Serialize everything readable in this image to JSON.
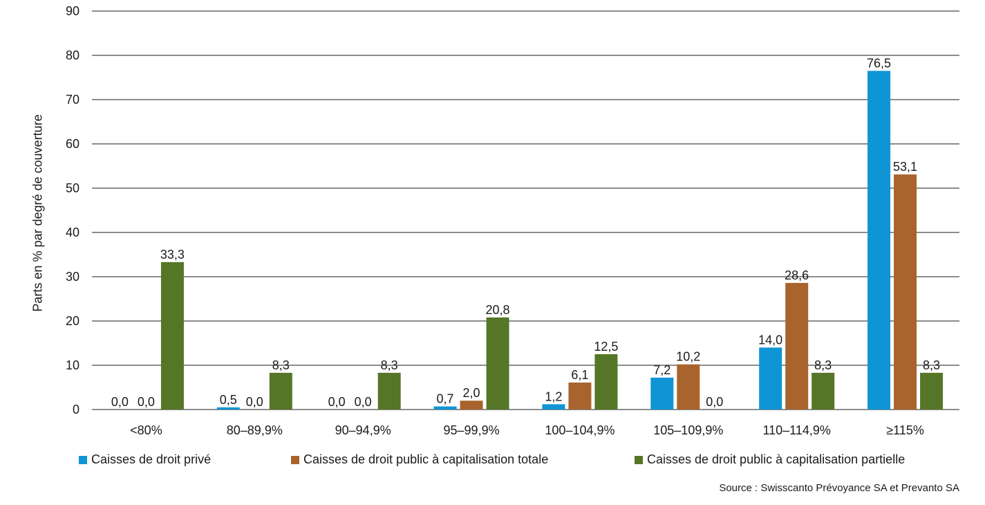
{
  "chart_data": {
    "type": "bar",
    "ylabel": "Parts en % par degré de couverture",
    "ylim": [
      0,
      90
    ],
    "yticks": [
      0,
      10,
      20,
      30,
      40,
      50,
      60,
      70,
      80,
      90
    ],
    "grid": true,
    "legend_position": "bottom",
    "categories": [
      "<80%",
      "80–89,9%",
      "90–94,9%",
      "95–99,9%",
      "100–104,9%",
      "105–109,9%",
      "110–114,9%",
      "≥115%"
    ],
    "series": [
      {
        "name": "Caisses de droit privé",
        "color": "#0f95d6",
        "values": [
          0.0,
          0.5,
          0.0,
          0.7,
          1.2,
          7.2,
          14.0,
          76.5
        ],
        "labels": [
          "0,0",
          "0,5",
          "0,0",
          "0,7",
          "1,2",
          "7,2",
          "14,0",
          "76,5"
        ]
      },
      {
        "name": "Caisses de droit public à capitalisation totale",
        "color": "#a8642c",
        "values": [
          0.0,
          0.0,
          0.0,
          2.0,
          6.1,
          10.2,
          28.6,
          53.1
        ],
        "labels": [
          "0,0",
          "0,0",
          "0,0",
          "2,0",
          "6,1",
          "10,2",
          "28,6",
          "53,1"
        ]
      },
      {
        "name": "Caisses de droit public à capitalisation partielle",
        "color": "#567627",
        "values": [
          33.3,
          8.3,
          8.3,
          20.8,
          12.5,
          0.0,
          8.3,
          8.3
        ],
        "labels": [
          "33,3",
          "8,3",
          "8,3",
          "20,8",
          "12,5",
          "0,0",
          "8,3",
          "8,3"
        ]
      }
    ],
    "source": "Source : Swisscanto Prévoyance SA et Prevanto SA"
  }
}
